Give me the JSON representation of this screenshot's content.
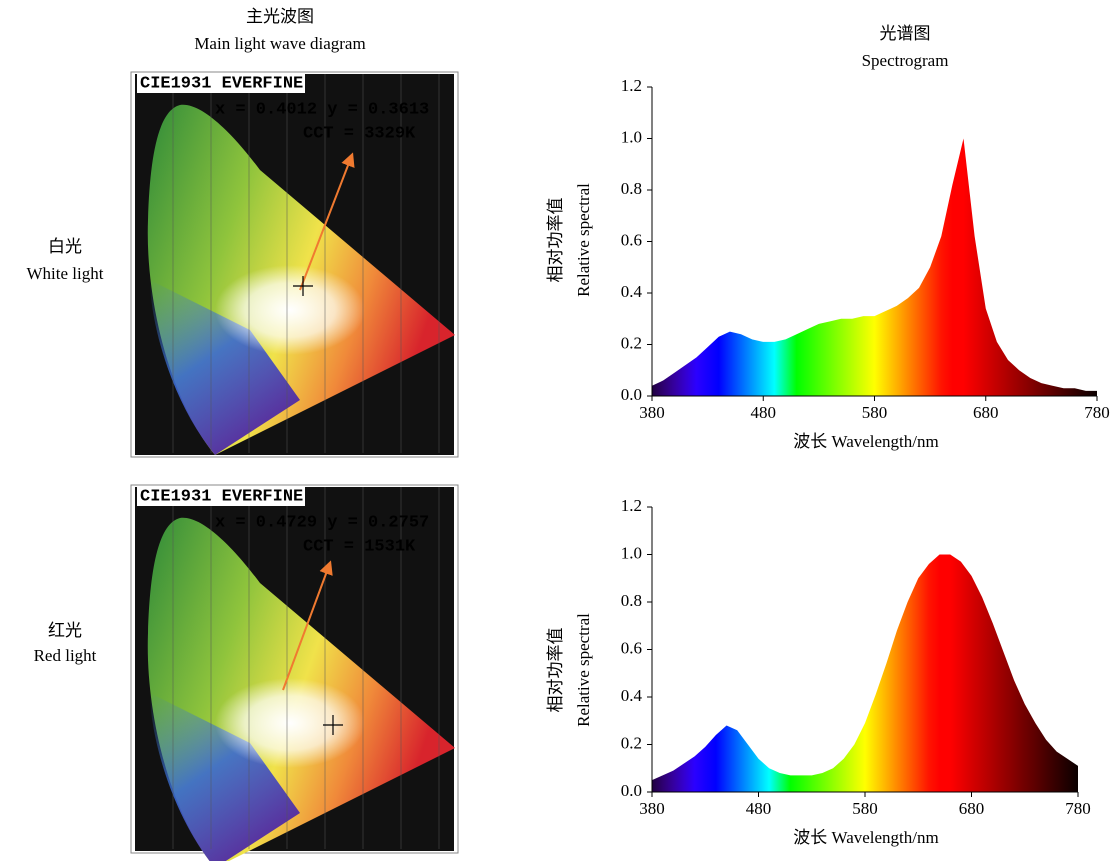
{
  "headers": {
    "left": {
      "zh": "主光波图",
      "en": "Main light wave diagram"
    },
    "right": {
      "zh": "光谱图",
      "en": "Spectrogram"
    }
  },
  "rows": [
    {
      "zh": "白光",
      "en": "White light",
      "cie": {
        "brand": "CIE1931 EVERFINE",
        "coords": "x = 0.4012 y = 0.3613",
        "cct": "CCT = 3329K"
      }
    },
    {
      "zh": "红光",
      "en": "Red light",
      "cie": {
        "brand": "CIE1931 EVERFINE",
        "coords": "x = 0.4729 y = 0.2757",
        "cct": "CCT = 1531K"
      }
    }
  ],
  "chart_data": [
    {
      "type": "area",
      "y_label_zh": "相对功率值",
      "y_label_en": "Relative spectral",
      "x_label": "波长 Wavelength/nm",
      "x": [
        380,
        390,
        400,
        410,
        420,
        430,
        440,
        450,
        460,
        470,
        480,
        490,
        500,
        510,
        520,
        530,
        540,
        550,
        560,
        570,
        580,
        590,
        600,
        610,
        620,
        630,
        640,
        650,
        660,
        670,
        680,
        690,
        700,
        710,
        720,
        730,
        740,
        750,
        760,
        770,
        780
      ],
      "values": [
        0.04,
        0.06,
        0.09,
        0.12,
        0.15,
        0.19,
        0.23,
        0.25,
        0.24,
        0.22,
        0.21,
        0.21,
        0.22,
        0.24,
        0.26,
        0.28,
        0.29,
        0.3,
        0.3,
        0.31,
        0.31,
        0.33,
        0.35,
        0.38,
        0.42,
        0.5,
        0.62,
        0.82,
        1.0,
        0.62,
        0.34,
        0.21,
        0.14,
        0.1,
        0.07,
        0.05,
        0.04,
        0.03,
        0.03,
        0.02,
        0.02
      ],
      "xlim": [
        380,
        780
      ],
      "xticks": [
        380,
        480,
        580,
        680,
        780
      ],
      "ylim": [
        0,
        1.2
      ],
      "yticks": [
        {
          "value": 0,
          "label": "0.0"
        },
        {
          "value": 0.2,
          "label": "0.2"
        },
        {
          "value": 0.4,
          "label": "0.4"
        },
        {
          "value": 0.6,
          "label": "0.6"
        },
        {
          "value": 0.8,
          "label": "0.8"
        },
        {
          "value": 1.0,
          "label": "1.0"
        },
        {
          "value": 1.2,
          "label": "1.2"
        }
      ]
    },
    {
      "type": "area",
      "y_label_zh": "相对功率值",
      "y_label_en": "Relative spectral",
      "x_label": "波长 Wavelength/nm",
      "x": [
        380,
        390,
        400,
        410,
        420,
        430,
        440,
        450,
        460,
        470,
        480,
        490,
        500,
        510,
        520,
        530,
        540,
        550,
        560,
        570,
        580,
        590,
        600,
        610,
        620,
        630,
        640,
        650,
        660,
        670,
        680,
        690,
        700,
        710,
        720,
        730,
        740,
        750,
        760,
        770,
        780
      ],
      "values": [
        0.05,
        0.07,
        0.09,
        0.12,
        0.15,
        0.19,
        0.24,
        0.28,
        0.26,
        0.2,
        0.14,
        0.1,
        0.08,
        0.07,
        0.07,
        0.07,
        0.08,
        0.1,
        0.14,
        0.2,
        0.29,
        0.41,
        0.54,
        0.68,
        0.8,
        0.9,
        0.96,
        1.0,
        1.0,
        0.97,
        0.91,
        0.82,
        0.71,
        0.59,
        0.47,
        0.37,
        0.29,
        0.22,
        0.17,
        0.14,
        0.11
      ],
      "xlim": [
        380,
        780
      ],
      "xticks": [
        380,
        480,
        580,
        680,
        780
      ],
      "ylim": [
        0,
        1.2
      ],
      "yticks": [
        {
          "value": 0,
          "label": "0.0"
        },
        {
          "value": 0.2,
          "label": "0.2"
        },
        {
          "value": 0.4,
          "label": "0.4"
        },
        {
          "value": 0.6,
          "label": "0.6"
        },
        {
          "value": 0.8,
          "label": "0.8"
        },
        {
          "value": 1.0,
          "label": "1.0"
        },
        {
          "value": 1.2,
          "label": "1.2"
        }
      ]
    }
  ]
}
